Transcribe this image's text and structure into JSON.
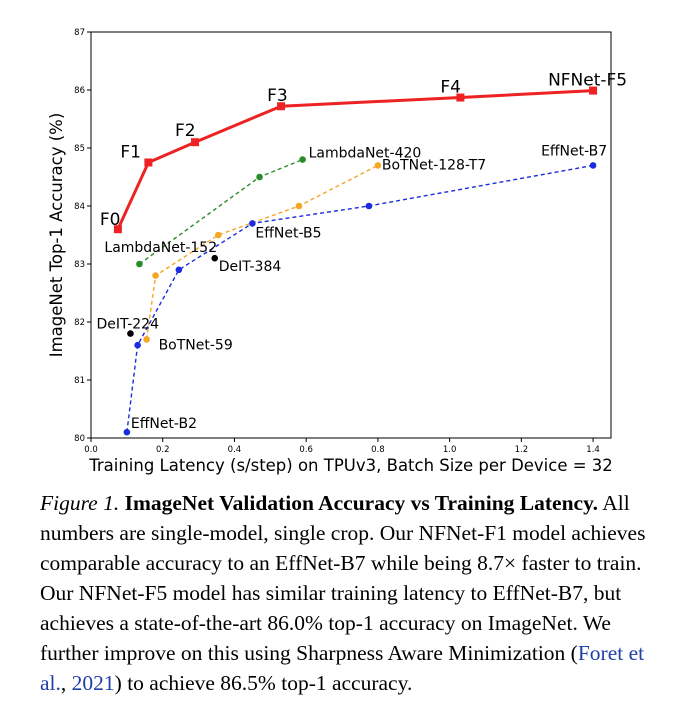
{
  "chart_data": {
    "type": "line",
    "xlabel": "Training Latency (s/step) on TPUv3, Batch Size per Device = 32",
    "ylabel": "ImageNet Top-1 Accuracy (%)",
    "xlim": [
      0.0,
      1.45
    ],
    "ylim": [
      80,
      87
    ],
    "xticks": [
      "0.0",
      "0.2",
      "0.4",
      "0.6",
      "0.8",
      "1.0",
      "1.2",
      "1.4"
    ],
    "yticks": [
      "80",
      "81",
      "82",
      "83",
      "84",
      "85",
      "86",
      "87"
    ],
    "grid": false,
    "series": [
      {
        "name": "NFNet",
        "color": "#ee2222",
        "style": "solid",
        "marker": "square",
        "points": [
          {
            "x": 0.075,
            "y": 83.6,
            "label": "F0"
          },
          {
            "x": 0.16,
            "y": 84.75,
            "label": "F1"
          },
          {
            "x": 0.29,
            "y": 85.1,
            "label": "F2"
          },
          {
            "x": 0.53,
            "y": 85.72,
            "label": "F3"
          },
          {
            "x": 1.03,
            "y": 85.87,
            "label": "F4"
          },
          {
            "x": 1.4,
            "y": 85.99,
            "label": "NFNet-F5"
          }
        ]
      },
      {
        "name": "LambdaNet",
        "color": "#2a8c2a",
        "style": "dashed",
        "marker": "circle",
        "points": [
          {
            "x": 0.135,
            "y": 83.0,
            "label": "LambdaNet-152"
          },
          {
            "x": 0.47,
            "y": 84.5,
            "label": ""
          },
          {
            "x": 0.59,
            "y": 84.8,
            "label": "LambdaNet-420"
          }
        ]
      },
      {
        "name": "BoTNet",
        "color": "#f5a623",
        "style": "dashed",
        "marker": "circle",
        "points": [
          {
            "x": 0.155,
            "y": 81.7,
            "label": "BoTNet-59"
          },
          {
            "x": 0.18,
            "y": 82.8,
            "label": ""
          },
          {
            "x": 0.355,
            "y": 83.5,
            "label": ""
          },
          {
            "x": 0.58,
            "y": 84.0,
            "label": ""
          },
          {
            "x": 0.8,
            "y": 84.7,
            "label": "BoTNet-128-T7"
          }
        ]
      },
      {
        "name": "EffNet",
        "color": "#1b2bdf",
        "style": "dashed",
        "marker": "circle",
        "points": [
          {
            "x": 0.1,
            "y": 80.1,
            "label": "EffNet-B2"
          },
          {
            "x": 0.13,
            "y": 81.6,
            "label": ""
          },
          {
            "x": 0.245,
            "y": 82.9,
            "label": ""
          },
          {
            "x": 0.45,
            "y": 83.7,
            "label": "EffNet-B5"
          },
          {
            "x": 0.775,
            "y": 84.0,
            "label": ""
          },
          {
            "x": 1.4,
            "y": 84.7,
            "label": "EffNet-B7"
          }
        ]
      },
      {
        "name": "DeIT",
        "color": "#000000",
        "style": "none",
        "marker": "circle",
        "points": [
          {
            "x": 0.11,
            "y": 81.8,
            "label": "DeIT-224"
          },
          {
            "x": 0.345,
            "y": 83.1,
            "label": "DeIT-384"
          }
        ]
      }
    ]
  },
  "caption": {
    "figure_label": "Figure 1.",
    "title": "ImageNet Validation Accuracy vs Training Latency.",
    "body_1": "All numbers are single-model, single crop. Our NFNet-F1 model achieves comparable accuracy to an EffNet-B7 while being 8.7× faster to train. Our NFNet-F5 model has similar training latency to EffNet-B7, but achieves a state-of-the-art 86.0% top-1 accuracy on ImageNet. We further improve on this using Sharpness Aware Minimization (",
    "citation_author": "Foret et al.",
    "citation_sep": ", ",
    "citation_year": "2021",
    "body_2": ") to achieve 86.5% top-1 accuracy."
  }
}
